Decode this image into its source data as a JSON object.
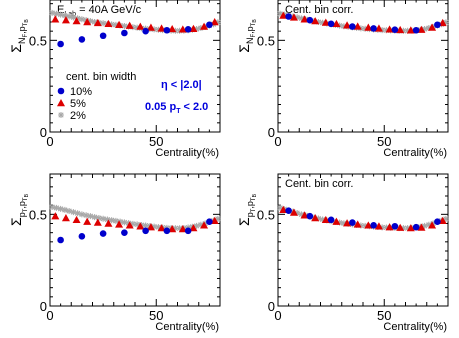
{
  "colors": {
    "s10": "#0000cc",
    "s5": "#dd0000",
    "s2": "#a8a8a8",
    "annot": "#0000dd"
  },
  "chart_data": [
    {
      "type": "scatter",
      "panel": "top-left",
      "xlabel": "Centrality(%)",
      "ylabel": {
        "main": "Σ",
        "sub1": "N",
        "sub2": "F",
        "sep": ",",
        "sub3": "p",
        "sub4": "T",
        "sub5": "B"
      },
      "xlim": [
        0,
        80
      ],
      "ylim": [
        0,
        0.72
      ],
      "xticks": [
        "0",
        "50"
      ],
      "yticks": [
        "0",
        "0.5"
      ],
      "header": {
        "pre": "E",
        "sub": "Lab",
        "post": " = 40A GeV/c"
      },
      "legend_title": "cent. bin width",
      "annotations": [
        {
          "kind": "eta",
          "pre": "η < |",
          "val": "2.0",
          "post": "|"
        },
        {
          "kind": "pt",
          "pre": "0.05 p",
          "sub": "T",
          "post": " < 2.0"
        }
      ],
      "series": [
        {
          "name": "10%",
          "marker": "circle",
          "x": [
            5,
            15,
            25,
            35,
            45,
            55,
            65,
            75
          ],
          "y": [
            0.48,
            0.505,
            0.525,
            0.54,
            0.55,
            0.555,
            0.56,
            0.585
          ]
        },
        {
          "name": "5%",
          "marker": "triangle",
          "x": [
            2.5,
            7.5,
            12.5,
            17.5,
            22.5,
            27.5,
            32.5,
            37.5,
            42.5,
            47.5,
            52.5,
            57.5,
            62.5,
            67.5,
            72.5,
            77.5
          ],
          "y": [
            0.615,
            0.61,
            0.605,
            0.6,
            0.595,
            0.59,
            0.585,
            0.58,
            0.575,
            0.57,
            0.565,
            0.562,
            0.56,
            0.563,
            0.575,
            0.6
          ]
        },
        {
          "name": "2%",
          "marker": "star",
          "x": [
            1,
            3,
            5,
            7,
            9,
            11,
            13,
            15,
            17,
            19,
            21,
            23,
            25,
            27,
            29,
            31,
            33,
            35,
            37,
            39,
            41,
            43,
            45,
            47,
            49,
            51,
            53,
            55,
            57,
            59,
            61,
            63,
            65,
            67,
            69,
            71,
            73,
            75,
            77,
            79
          ],
          "y": [
            0.65,
            0.645,
            0.64,
            0.635,
            0.63,
            0.625,
            0.62,
            0.615,
            0.61,
            0.605,
            0.6,
            0.596,
            0.593,
            0.59,
            0.587,
            0.584,
            0.581,
            0.578,
            0.575,
            0.572,
            0.569,
            0.566,
            0.564,
            0.562,
            0.56,
            0.558,
            0.556,
            0.554,
            0.553,
            0.552,
            0.552,
            0.553,
            0.555,
            0.558,
            0.562,
            0.567,
            0.573,
            0.58,
            0.588,
            0.598
          ]
        }
      ]
    },
    {
      "type": "scatter",
      "panel": "top-right",
      "xlabel": "Centrality(%)",
      "ylabel": {
        "main": "Σ",
        "sub1": "N",
        "sub2": "F",
        "sep": ",",
        "sub3": "p",
        "sub4": "T",
        "sub5": "B"
      },
      "xlim": [
        0,
        80
      ],
      "ylim": [
        0,
        0.72
      ],
      "xticks": [
        "0",
        "50"
      ],
      "yticks": [
        "0",
        "0.5"
      ],
      "header_text": "Cent. bin corr.",
      "series": [
        {
          "name": "10%",
          "marker": "circle",
          "x": [
            5,
            15,
            25,
            35,
            45,
            55,
            65,
            75
          ],
          "y": [
            0.63,
            0.61,
            0.59,
            0.575,
            0.565,
            0.558,
            0.555,
            0.585
          ]
        },
        {
          "name": "5%",
          "marker": "triangle",
          "x": [
            2.5,
            7.5,
            12.5,
            17.5,
            22.5,
            27.5,
            32.5,
            37.5,
            42.5,
            47.5,
            52.5,
            57.5,
            62.5,
            67.5,
            72.5,
            77.5
          ],
          "y": [
            0.635,
            0.625,
            0.615,
            0.605,
            0.597,
            0.59,
            0.582,
            0.576,
            0.57,
            0.565,
            0.56,
            0.557,
            0.555,
            0.558,
            0.57,
            0.595
          ]
        },
        {
          "name": "2%",
          "marker": "star",
          "x": [
            1,
            3,
            5,
            7,
            9,
            11,
            13,
            15,
            17,
            19,
            21,
            23,
            25,
            27,
            29,
            31,
            33,
            35,
            37,
            39,
            41,
            43,
            45,
            47,
            49,
            51,
            53,
            55,
            57,
            59,
            61,
            63,
            65,
            67,
            69,
            71,
            73,
            75,
            77,
            79
          ],
          "y": [
            0.645,
            0.64,
            0.635,
            0.63,
            0.625,
            0.62,
            0.615,
            0.61,
            0.605,
            0.6,
            0.596,
            0.592,
            0.588,
            0.584,
            0.58,
            0.577,
            0.574,
            0.571,
            0.568,
            0.565,
            0.563,
            0.561,
            0.559,
            0.557,
            0.556,
            0.555,
            0.554,
            0.553,
            0.552,
            0.552,
            0.552,
            0.553,
            0.555,
            0.558,
            0.562,
            0.567,
            0.573,
            0.58,
            0.588,
            0.598
          ]
        }
      ]
    },
    {
      "type": "scatter",
      "panel": "bottom-left",
      "xlabel": "Centrality(%)",
      "ylabel": {
        "main": "Σ",
        "sub1": "p",
        "sub2": "T",
        "sep": ",",
        "sub3": "p",
        "sub4": "T",
        "sub5": "B"
      },
      "xlim": [
        0,
        80
      ],
      "ylim": [
        0,
        0.72
      ],
      "xticks": [
        "0",
        "50"
      ],
      "yticks": [
        "0",
        "0.5"
      ],
      "series": [
        {
          "name": "10%",
          "marker": "circle",
          "x": [
            5,
            15,
            25,
            35,
            45,
            55,
            65,
            75
          ],
          "y": [
            0.36,
            0.38,
            0.395,
            0.4,
            0.41,
            0.41,
            0.41,
            0.46
          ]
        },
        {
          "name": "5%",
          "marker": "triangle",
          "x": [
            2.5,
            7.5,
            12.5,
            17.5,
            22.5,
            27.5,
            32.5,
            37.5,
            42.5,
            47.5,
            52.5,
            57.5,
            62.5,
            67.5,
            72.5,
            77.5
          ],
          "y": [
            0.49,
            0.48,
            0.47,
            0.46,
            0.455,
            0.45,
            0.445,
            0.44,
            0.435,
            0.43,
            0.425,
            0.42,
            0.42,
            0.425,
            0.44,
            0.465
          ]
        },
        {
          "name": "2%",
          "marker": "star",
          "x": [
            1,
            3,
            5,
            7,
            9,
            11,
            13,
            15,
            17,
            19,
            21,
            23,
            25,
            27,
            29,
            31,
            33,
            35,
            37,
            39,
            41,
            43,
            45,
            47,
            49,
            51,
            53,
            55,
            57,
            59,
            61,
            63,
            65,
            67,
            69,
            71,
            73,
            75,
            77,
            79
          ],
          "y": [
            0.54,
            0.535,
            0.53,
            0.524,
            0.518,
            0.512,
            0.506,
            0.5,
            0.495,
            0.49,
            0.485,
            0.48,
            0.476,
            0.472,
            0.468,
            0.464,
            0.46,
            0.456,
            0.452,
            0.448,
            0.445,
            0.442,
            0.439,
            0.436,
            0.433,
            0.43,
            0.428,
            0.426,
            0.425,
            0.424,
            0.424,
            0.425,
            0.428,
            0.432,
            0.437,
            0.443,
            0.45,
            0.458,
            0.466,
            0.475
          ]
        }
      ]
    },
    {
      "type": "scatter",
      "panel": "bottom-right",
      "xlabel": "Centrality(%)",
      "ylabel": {
        "main": "Σ",
        "sub1": "p",
        "sub2": "T",
        "sep": ",",
        "sub3": "p",
        "sub4": "T",
        "sub5": "B"
      },
      "xlim": [
        0,
        80
      ],
      "ylim": [
        0,
        0.72
      ],
      "xticks": [
        "0",
        "50"
      ],
      "yticks": [
        "0",
        "0.5"
      ],
      "header_text": "Cent. bin corr.",
      "series": [
        {
          "name": "10%",
          "marker": "circle",
          "x": [
            5,
            15,
            25,
            35,
            45,
            55,
            65,
            75
          ],
          "y": [
            0.52,
            0.49,
            0.47,
            0.455,
            0.44,
            0.435,
            0.43,
            0.46
          ]
        },
        {
          "name": "5%",
          "marker": "triangle",
          "x": [
            2.5,
            7.5,
            12.5,
            17.5,
            22.5,
            27.5,
            32.5,
            37.5,
            42.5,
            47.5,
            52.5,
            57.5,
            62.5,
            67.5,
            72.5,
            77.5
          ],
          "y": [
            0.525,
            0.51,
            0.495,
            0.48,
            0.47,
            0.46,
            0.452,
            0.445,
            0.44,
            0.435,
            0.43,
            0.427,
            0.425,
            0.428,
            0.44,
            0.465
          ]
        },
        {
          "name": "2%",
          "marker": "star",
          "x": [
            1,
            3,
            5,
            7,
            9,
            11,
            13,
            15,
            17,
            19,
            21,
            23,
            25,
            27,
            29,
            31,
            33,
            35,
            37,
            39,
            41,
            43,
            45,
            47,
            49,
            51,
            53,
            55,
            57,
            59,
            61,
            63,
            65,
            67,
            69,
            71,
            73,
            75,
            77,
            79
          ],
          "y": [
            0.535,
            0.528,
            0.521,
            0.514,
            0.507,
            0.5,
            0.494,
            0.488,
            0.482,
            0.477,
            0.472,
            0.467,
            0.463,
            0.459,
            0.455,
            0.451,
            0.448,
            0.445,
            0.442,
            0.439,
            0.437,
            0.435,
            0.433,
            0.431,
            0.429,
            0.428,
            0.427,
            0.426,
            0.425,
            0.425,
            0.425,
            0.426,
            0.428,
            0.432,
            0.437,
            0.443,
            0.45,
            0.458,
            0.466,
            0.475
          ]
        }
      ]
    }
  ]
}
